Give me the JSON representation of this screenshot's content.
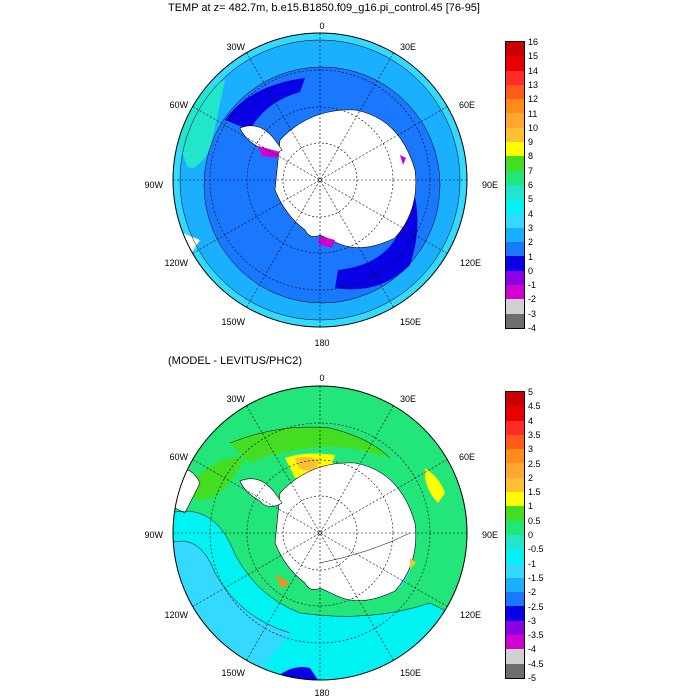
{
  "panels": [
    {
      "title": "TEMP at z= 482.7m, b.e15.B1850.f09_g16.pi_control.45 [76-95]",
      "legend": {
        "labels": [
          "16",
          "15",
          "14",
          "13",
          "12",
          "11",
          "10",
          "9",
          "8",
          "7",
          "6",
          "5",
          "4",
          "3",
          "2",
          "1",
          "0",
          "-1",
          "-2",
          "-3",
          "-4"
        ],
        "colors": [
          "#c80000",
          "#e80000",
          "#ff2a2a",
          "#ff5a1a",
          "#ff8c1a",
          "#ffa633",
          "#ffc033",
          "#ffff00",
          "#44dd22",
          "#22e67a",
          "#22e6cc",
          "#00f2f2",
          "#33d9ff",
          "#1ab0ff",
          "#1a78ff",
          "#0a00e6",
          "#8c00e6",
          "#d000d0",
          "#d0d0d0",
          "#6e6e6e"
        ]
      }
    },
    {
      "title": "(MODEL - LEVITUS/PHC2)",
      "legend": {
        "labels": [
          "5",
          "4.5",
          "4",
          "3.5",
          "3",
          "2.5",
          "2",
          "1.5",
          "1",
          "0.5",
          "0",
          "-0.5",
          "-1",
          "-1.5",
          "-2",
          "-2.5",
          "-3",
          "-3.5",
          "-4",
          "-4.5",
          "-5"
        ],
        "colors": [
          "#c80000",
          "#e80000",
          "#ff2a2a",
          "#ff5a1a",
          "#ff8c1a",
          "#ffa633",
          "#ffc033",
          "#ffff00",
          "#44dd22",
          "#22e67a",
          "#22e6cc",
          "#00f2f2",
          "#33d9ff",
          "#1ab0ff",
          "#1a78ff",
          "#0a00e6",
          "#8c00e6",
          "#d000d0",
          "#d0d0d0",
          "#6e6e6e"
        ]
      }
    }
  ],
  "map_labels": {
    "lon_0": "0",
    "lon_30e": "30E",
    "lon_60e": "60E",
    "lon_90e": "90E",
    "lon_120e": "120E",
    "lon_150e": "150E",
    "lon_180": "180",
    "lon_150w": "150W",
    "lon_120w": "120W",
    "lon_90w": "90W",
    "lon_60w": "60W",
    "lon_30w": "30W"
  }
}
